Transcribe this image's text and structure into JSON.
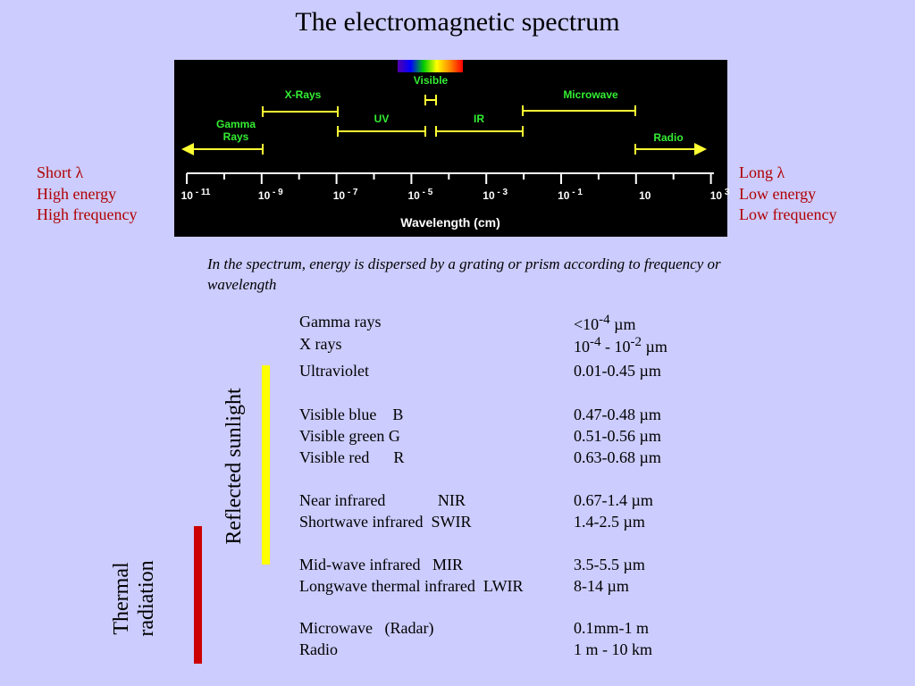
{
  "title": "The electromagnetic spectrum",
  "diagram": {
    "regions": {
      "visible": "Visible",
      "xrays": "X-Rays",
      "microwave": "Microwave",
      "gamma_line1": "Gamma",
      "gamma_line2": "Rays",
      "uv": "UV",
      "ir": "IR",
      "radio": "Radio"
    },
    "axis_label": "Wavelength (cm)",
    "ticks": [
      {
        "base": "10",
        "exp": "- 11"
      },
      {
        "base": "10",
        "exp": "- 9"
      },
      {
        "base": "10",
        "exp": "- 7"
      },
      {
        "base": "10",
        "exp": "- 5"
      },
      {
        "base": "10",
        "exp": "- 3"
      },
      {
        "base": "10",
        "exp": "- 1"
      },
      {
        "base": "10",
        "exp": ""
      },
      {
        "base": "10",
        "exp": "3"
      }
    ],
    "colors": {
      "region_labels": "#33ee33",
      "bars": "#ffff33",
      "axis": "#ffffff"
    }
  },
  "left_side": [
    "Short λ",
    "High energy",
    "High frequency"
  ],
  "right_side": [
    "Long λ",
    "Low  energy",
    "Low frequency"
  ],
  "caption": "In the spectrum, energy is dispersed by a grating or prism according to frequency or wavelength",
  "table": {
    "rows": [
      {
        "name": "Gamma rays",
        "range_html": "&lt;10<sup>-4</sup> µm"
      },
      {
        "name": "X rays",
        "range_html": "10<sup>-4</sup> - 10<sup>-2</sup> µm"
      },
      {
        "name": "Ultraviolet",
        "range_html": "0.01-0.45 µm"
      },
      {
        "name": "Visible blue    B",
        "range_html": "0.47-0.48 µm"
      },
      {
        "name": "Visible green G",
        "range_html": "0.51-0.56 µm"
      },
      {
        "name": "Visible red      R",
        "range_html": "0.63-0.68 µm"
      },
      {
        "name": "Near infrared             NIR",
        "range_html": "0.67-1.4 µm"
      },
      {
        "name": "Shortwave infrared  SWIR",
        "range_html": "1.4-2.5 µm"
      },
      {
        "name": "Mid-wave infrared   MIR",
        "range_html": "3.5-5.5 µm"
      },
      {
        "name": "Longwave thermal infrared  LWIR",
        "range_html": "8-14 µm"
      },
      {
        "name": "Microwave   (Radar)",
        "range_html": "0.1mm-1 m"
      },
      {
        "name": "Radio",
        "range_html": "1 m - 10 km"
      }
    ]
  },
  "reflected_label": "Reflected sunlight",
  "thermal_label_line1": "Thermal",
  "thermal_label_line2": "radiation",
  "bar_colors": {
    "reflected": "#ffff00",
    "thermal": "#cc0000",
    "side_text": "#b00000"
  }
}
